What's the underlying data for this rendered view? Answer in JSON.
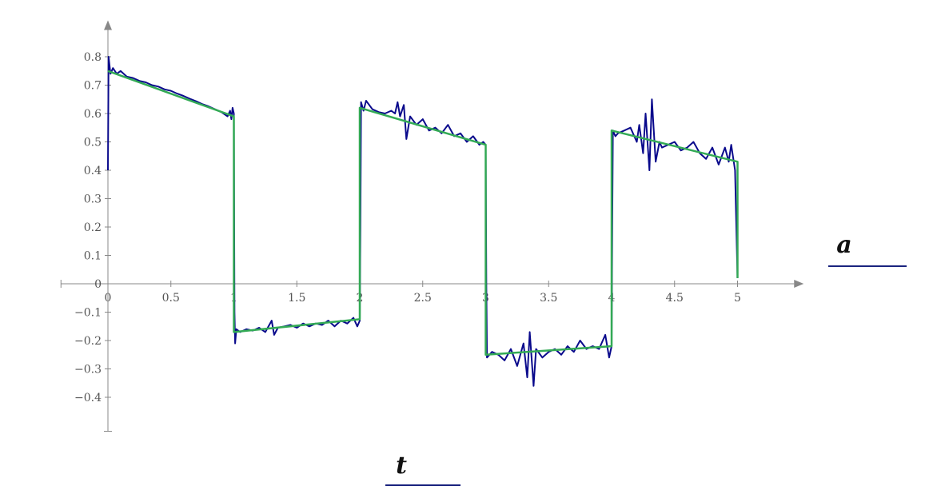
{
  "chart_data": {
    "type": "line",
    "xlabel": "t",
    "ylabel": "a",
    "xlim": [
      -0.5,
      5.5
    ],
    "ylim": [
      -0.5,
      0.9
    ],
    "x_ticks": [
      0,
      0.5,
      1,
      1.5,
      2,
      2.5,
      3,
      3.5,
      4,
      4.5,
      5
    ],
    "x_tick_labels": [
      "0",
      "0.5",
      "1",
      "1.5",
      "2",
      "2.5",
      "3",
      "3.5",
      "4",
      "4.5",
      "5"
    ],
    "y_ticks": [
      0.8,
      0.7,
      0.6,
      0.5,
      0.4,
      0.3,
      0.2,
      0.1,
      0,
      -0.1,
      -0.2,
      -0.3,
      -0.4
    ],
    "y_tick_labels": [
      "0.8",
      "0.7",
      "0.6",
      "0.5",
      "0.4",
      "0.3",
      "0.2",
      "0.1",
      "0",
      "−0.1",
      "−0.2",
      "−0.3",
      "−0.4"
    ],
    "grid": false,
    "legend": "none",
    "series": [
      {
        "color": "#0a0a8c",
        "points": [
          [
            0,
            0.4
          ],
          [
            0.005,
            0.8
          ],
          [
            0.02,
            0.74
          ],
          [
            0.04,
            0.76
          ],
          [
            0.07,
            0.74
          ],
          [
            0.1,
            0.75
          ],
          [
            0.15,
            0.73
          ],
          [
            0.2,
            0.725
          ],
          [
            0.25,
            0.715
          ],
          [
            0.3,
            0.71
          ],
          [
            0.35,
            0.7
          ],
          [
            0.4,
            0.695
          ],
          [
            0.45,
            0.685
          ],
          [
            0.5,
            0.68
          ],
          [
            0.55,
            0.67
          ],
          [
            0.6,
            0.662
          ],
          [
            0.65,
            0.652
          ],
          [
            0.7,
            0.643
          ],
          [
            0.75,
            0.633
          ],
          [
            0.8,
            0.625
          ],
          [
            0.85,
            0.615
          ],
          [
            0.9,
            0.605
          ],
          [
            0.95,
            0.59
          ],
          [
            0.97,
            0.61
          ],
          [
            0.98,
            0.58
          ],
          [
            0.99,
            0.62
          ],
          [
            1.0,
            0.6
          ],
          [
            1.005,
            -0.1
          ],
          [
            1.01,
            -0.21
          ],
          [
            1.02,
            -0.16
          ],
          [
            1.05,
            -0.17
          ],
          [
            1.1,
            -0.16
          ],
          [
            1.15,
            -0.165
          ],
          [
            1.2,
            -0.155
          ],
          [
            1.25,
            -0.17
          ],
          [
            1.3,
            -0.13
          ],
          [
            1.32,
            -0.18
          ],
          [
            1.35,
            -0.155
          ],
          [
            1.4,
            -0.15
          ],
          [
            1.45,
            -0.145
          ],
          [
            1.5,
            -0.155
          ],
          [
            1.55,
            -0.14
          ],
          [
            1.6,
            -0.15
          ],
          [
            1.65,
            -0.14
          ],
          [
            1.7,
            -0.145
          ],
          [
            1.75,
            -0.13
          ],
          [
            1.8,
            -0.15
          ],
          [
            1.85,
            -0.13
          ],
          [
            1.9,
            -0.14
          ],
          [
            1.95,
            -0.12
          ],
          [
            1.98,
            -0.15
          ],
          [
            2.0,
            -0.13
          ],
          [
            2.005,
            0.2
          ],
          [
            2.01,
            0.64
          ],
          [
            2.03,
            0.61
          ],
          [
            2.05,
            0.645
          ],
          [
            2.1,
            0.615
          ],
          [
            2.15,
            0.605
          ],
          [
            2.2,
            0.6
          ],
          [
            2.25,
            0.61
          ],
          [
            2.28,
            0.6
          ],
          [
            2.3,
            0.64
          ],
          [
            2.32,
            0.59
          ],
          [
            2.35,
            0.63
          ],
          [
            2.37,
            0.51
          ],
          [
            2.4,
            0.59
          ],
          [
            2.45,
            0.56
          ],
          [
            2.5,
            0.58
          ],
          [
            2.55,
            0.54
          ],
          [
            2.6,
            0.55
          ],
          [
            2.65,
            0.53
          ],
          [
            2.7,
            0.56
          ],
          [
            2.75,
            0.52
          ],
          [
            2.8,
            0.53
          ],
          [
            2.85,
            0.5
          ],
          [
            2.9,
            0.52
          ],
          [
            2.95,
            0.49
          ],
          [
            2.98,
            0.5
          ],
          [
            3.0,
            0.49
          ],
          [
            3.005,
            0.0
          ],
          [
            3.01,
            -0.26
          ],
          [
            3.05,
            -0.24
          ],
          [
            3.1,
            -0.25
          ],
          [
            3.15,
            -0.27
          ],
          [
            3.2,
            -0.23
          ],
          [
            3.25,
            -0.29
          ],
          [
            3.3,
            -0.21
          ],
          [
            3.33,
            -0.33
          ],
          [
            3.35,
            -0.17
          ],
          [
            3.38,
            -0.36
          ],
          [
            3.4,
            -0.23
          ],
          [
            3.45,
            -0.26
          ],
          [
            3.5,
            -0.24
          ],
          [
            3.55,
            -0.23
          ],
          [
            3.6,
            -0.25
          ],
          [
            3.65,
            -0.22
          ],
          [
            3.7,
            -0.24
          ],
          [
            3.75,
            -0.2
          ],
          [
            3.8,
            -0.23
          ],
          [
            3.85,
            -0.22
          ],
          [
            3.9,
            -0.23
          ],
          [
            3.95,
            -0.18
          ],
          [
            3.98,
            -0.26
          ],
          [
            4.0,
            -0.22
          ],
          [
            4.005,
            0.2
          ],
          [
            4.01,
            0.54
          ],
          [
            4.03,
            0.52
          ],
          [
            4.05,
            0.53
          ],
          [
            4.1,
            0.54
          ],
          [
            4.15,
            0.55
          ],
          [
            4.2,
            0.5
          ],
          [
            4.22,
            0.56
          ],
          [
            4.25,
            0.46
          ],
          [
            4.27,
            0.6
          ],
          [
            4.3,
            0.4
          ],
          [
            4.32,
            0.65
          ],
          [
            4.35,
            0.43
          ],
          [
            4.38,
            0.5
          ],
          [
            4.4,
            0.48
          ],
          [
            4.45,
            0.49
          ],
          [
            4.5,
            0.5
          ],
          [
            4.55,
            0.47
          ],
          [
            4.6,
            0.48
          ],
          [
            4.65,
            0.5
          ],
          [
            4.7,
            0.46
          ],
          [
            4.75,
            0.44
          ],
          [
            4.8,
            0.48
          ],
          [
            4.85,
            0.42
          ],
          [
            4.9,
            0.48
          ],
          [
            4.93,
            0.43
          ],
          [
            4.95,
            0.49
          ],
          [
            4.98,
            0.4
          ],
          [
            5.0,
            0.02
          ]
        ]
      },
      {
        "color": "#33aa55",
        "points": [
          [
            0,
            0.75
          ],
          [
            1.0,
            0.59
          ],
          [
            1.0,
            -0.17
          ],
          [
            2.0,
            -0.125
          ],
          [
            2.0,
            0.62
          ],
          [
            3.0,
            0.49
          ],
          [
            3.0,
            -0.25
          ],
          [
            4.0,
            -0.22
          ],
          [
            4.0,
            0.54
          ],
          [
            5.0,
            0.43
          ],
          [
            5.0,
            0.02
          ]
        ]
      }
    ],
    "axis_color": "#888888"
  }
}
